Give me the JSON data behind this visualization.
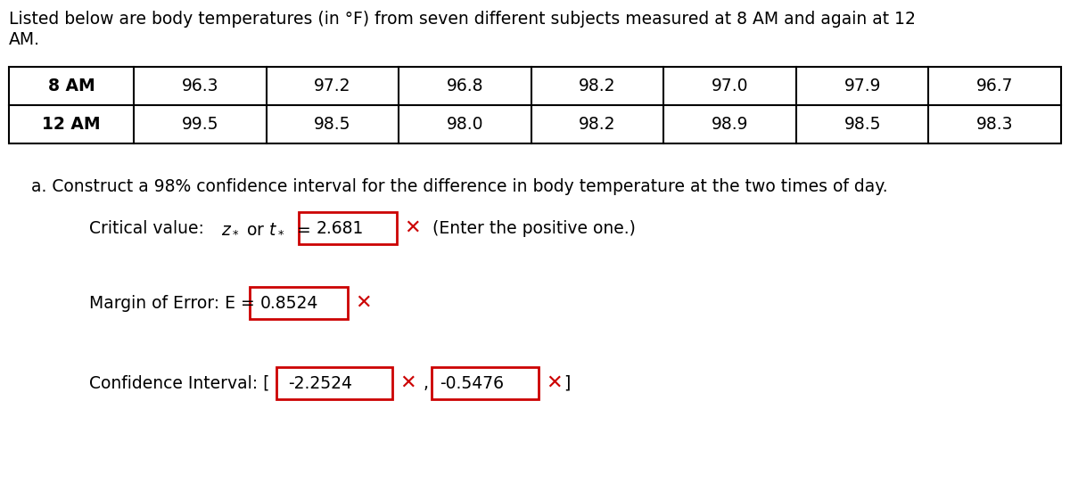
{
  "title_line1": "Listed below are body temperatures (in °F) from seven different subjects measured at 8 AM and again at 12",
  "title_line2": "AM.",
  "table_headers": [
    "8 AM",
    "12 AM"
  ],
  "data_8am": [
    96.3,
    97.2,
    96.8,
    98.2,
    97.0,
    97.9,
    96.7
  ],
  "data_12am": [
    99.5,
    98.5,
    98.0,
    98.2,
    98.9,
    98.5,
    98.3
  ],
  "question": "a. Construct a 98% confidence interval for the difference in body temperature at the two times of day.",
  "critical_value": "2.681",
  "critical_note": "(Enter the positive one.)",
  "margin_value": "0.8524",
  "ci_value1": "-2.2524",
  "ci_value2": "-0.5476",
  "bg_color": "#ffffff",
  "text_color": "#000000",
  "red_color": "#cc0000",
  "box_border_color": "#cc0000",
  "table_border_color": "#000000",
  "font_size_title": 13.5,
  "font_size_table": 13.5,
  "font_size_body": 13.5
}
